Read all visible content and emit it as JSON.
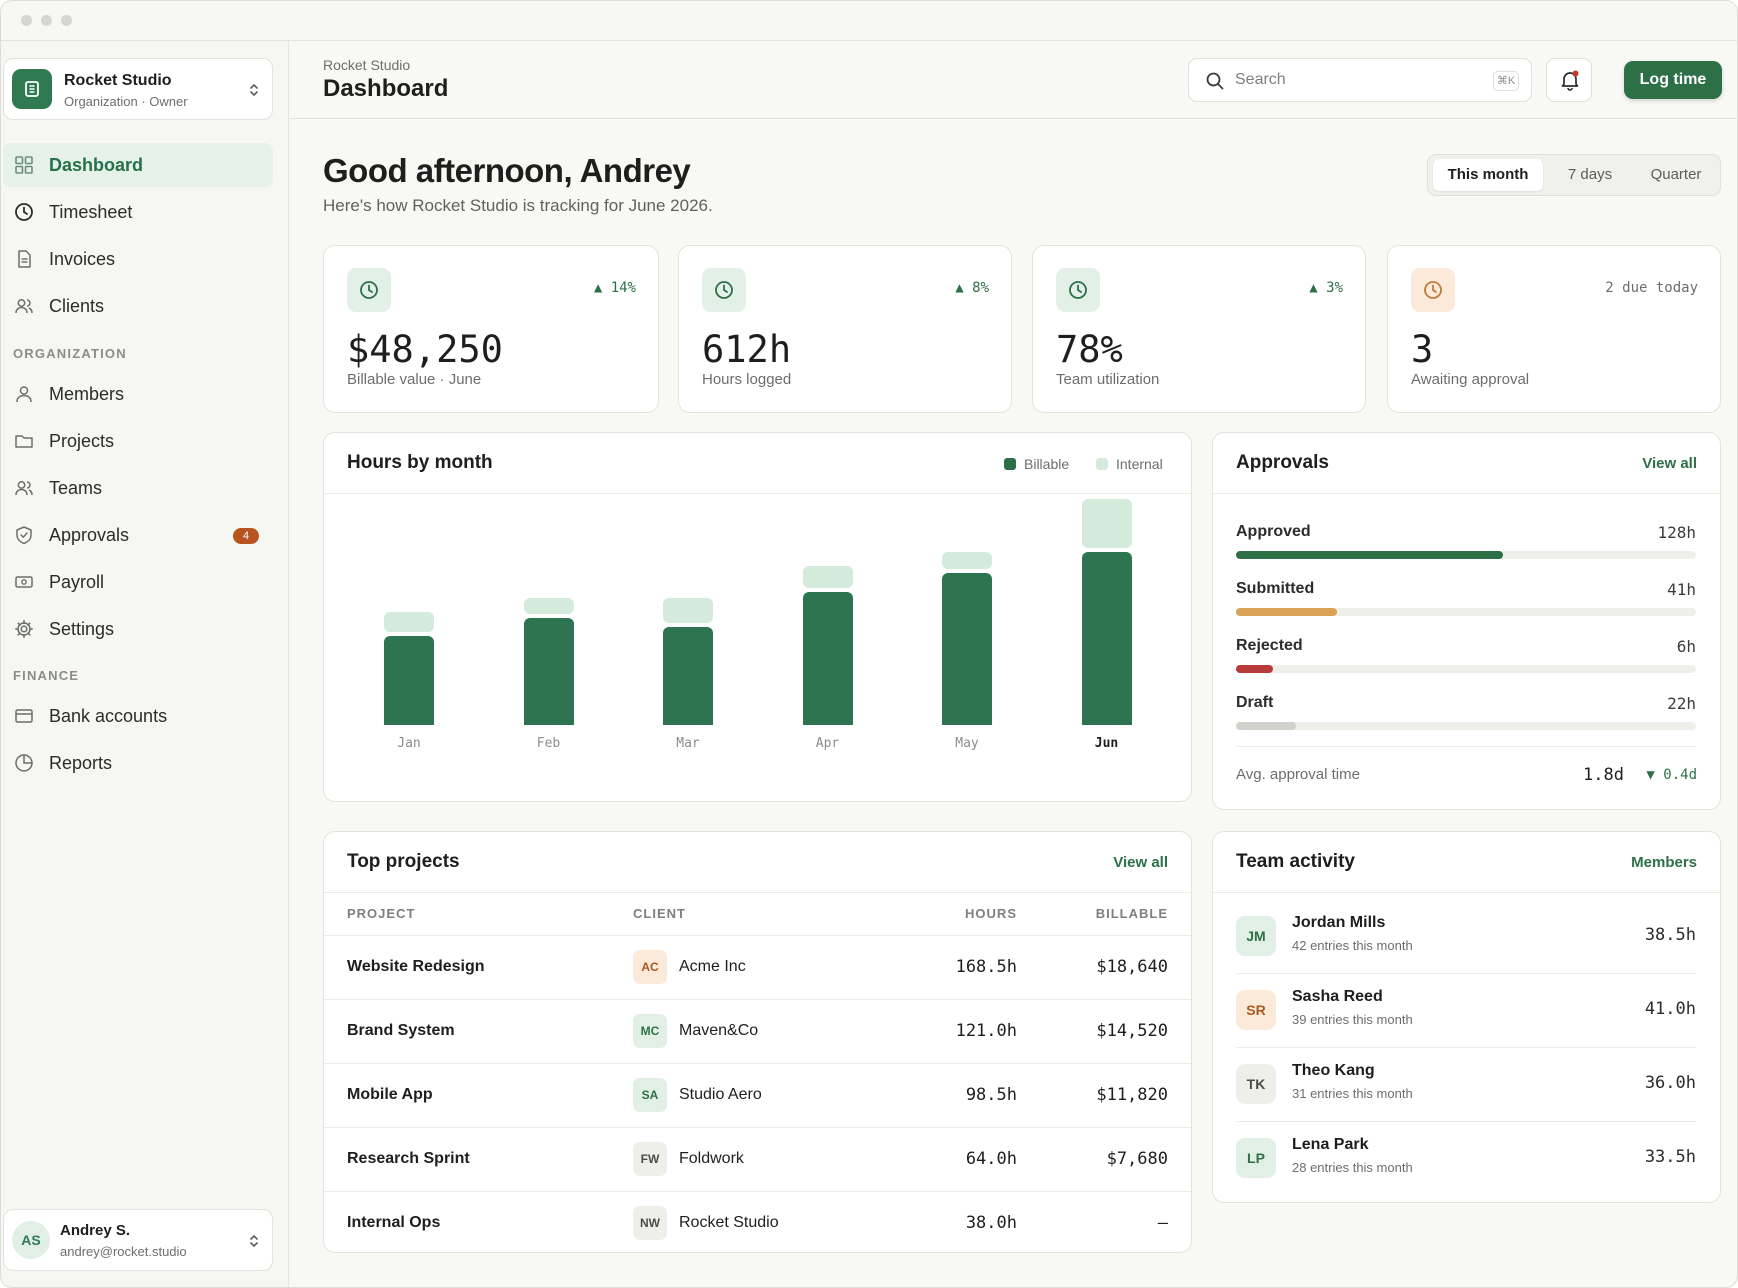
{
  "colors": {
    "accent": "#2d7048",
    "accent_light": "#d4ebdb",
    "warning": "#d9a256",
    "danger": "#b83a3a",
    "muted": "#d2d2cc",
    "badge": "#b8541f"
  },
  "org": {
    "name": "Rocket Studio",
    "subtitle": "Organization · Owner",
    "icon": "building-icon"
  },
  "nav": {
    "main": [
      {
        "label": "Dashboard",
        "icon": "grid-icon",
        "active": true
      },
      {
        "label": "Timesheet",
        "icon": "clock-icon"
      },
      {
        "label": "Invoices",
        "icon": "document-icon"
      },
      {
        "label": "Clients",
        "icon": "users-icon"
      }
    ],
    "organization_heading": "ORGANIZATION",
    "organization": [
      {
        "label": "Members",
        "icon": "user-icon"
      },
      {
        "label": "Projects",
        "icon": "folder-icon"
      },
      {
        "label": "Teams",
        "icon": "users-icon"
      },
      {
        "label": "Approvals",
        "icon": "shield-check-icon",
        "badge": "4"
      },
      {
        "label": "Payroll",
        "icon": "banknote-icon"
      },
      {
        "label": "Settings",
        "icon": "gear-icon"
      }
    ],
    "finance_heading": "FINANCE",
    "finance": [
      {
        "label": "Bank accounts",
        "icon": "credit-card-icon"
      },
      {
        "label": "Reports",
        "icon": "pie-chart-icon"
      }
    ]
  },
  "user": {
    "initials": "AS",
    "name": "Andrey S.",
    "email": "andrey@rocket.studio"
  },
  "header": {
    "breadcrumb": "Rocket Studio",
    "title": "Dashboard",
    "search_placeholder": "Search",
    "search_shortcut": "⌘K",
    "log_time_label": "Log time"
  },
  "greeting": {
    "title": "Good afternoon, Andrey",
    "subtitle": "Here's how Rocket Studio is tracking for June 2026."
  },
  "range": {
    "options": [
      "This month",
      "7 days",
      "Quarter"
    ],
    "selected": "This month"
  },
  "kpis": [
    {
      "value": "$48,250",
      "label": "Billable value · June",
      "delta": "▲ 14%",
      "icon": "clock-icon"
    },
    {
      "value": "612h",
      "label": "Hours logged",
      "delta": "▲ 8%",
      "icon": "clock-icon"
    },
    {
      "value": "78%",
      "label": "Team utilization",
      "delta": "▲ 3%",
      "icon": "clock-icon"
    },
    {
      "value": "3",
      "label": "Awaiting approval",
      "delta": "2 due today",
      "icon": "clock-icon"
    }
  ],
  "hours_chart": {
    "title": "Hours by month",
    "legend": [
      "Billable",
      "Internal"
    ]
  },
  "chart_data": {
    "type": "bar",
    "stacked": true,
    "categories": [
      "Jan",
      "Feb",
      "Mar",
      "Apr",
      "May",
      "Jun"
    ],
    "series": [
      {
        "name": "Billable",
        "values": [
          58,
          70,
          64,
          87,
          99,
          113
        ]
      },
      {
        "name": "Internal",
        "values": [
          13,
          10,
          16,
          14,
          11,
          32
        ]
      }
    ],
    "highlight": "Jun",
    "ylim": [
      0,
      150
    ],
    "grid": false,
    "legend_position": "top-right"
  },
  "approvals": {
    "title": "Approvals",
    "link": "View all",
    "rows": [
      {
        "label": "Approved",
        "value": "128h",
        "fraction": 0.58,
        "color": "#2d7048"
      },
      {
        "label": "Submitted",
        "value": "41h",
        "fraction": 0.22,
        "color": "#d9a256"
      },
      {
        "label": "Rejected",
        "value": "6h",
        "fraction": 0.08,
        "color": "#b83a3a"
      },
      {
        "label": "Draft",
        "value": "22h",
        "fraction": 0.13,
        "color": "#d2d2cc"
      }
    ],
    "avg_label": "Avg. approval time",
    "avg_value": "1.8d",
    "avg_delta": "▼ 0.4d"
  },
  "top_projects": {
    "title": "Top projects",
    "link": "View all",
    "columns": [
      "PROJECT",
      "CLIENT",
      "HOURS",
      "BILLABLE"
    ],
    "rows": [
      {
        "project": "Website Redesign",
        "client_initials": "AC",
        "client": "Acme Inc",
        "hours": "168.5h",
        "billable": "$18,640",
        "badge_bg": "#fbe9da",
        "badge_fg": "#a85a1f"
      },
      {
        "project": "Brand System",
        "client_initials": "MC",
        "client": "Maven&Co",
        "hours": "121.0h",
        "billable": "$14,520",
        "badge_bg": "#e1efe5",
        "badge_fg": "#2d7048"
      },
      {
        "project": "Mobile App",
        "client_initials": "SA",
        "client": "Studio Aero",
        "hours": "98.5h",
        "billable": "$11,820",
        "badge_bg": "#e1efe5",
        "badge_fg": "#2d7048"
      },
      {
        "project": "Research Sprint",
        "client_initials": "FW",
        "client": "Foldwork",
        "hours": "64.0h",
        "billable": "$7,680",
        "badge_bg": "#efefea",
        "badge_fg": "#4a4d4a"
      },
      {
        "project": "Internal Ops",
        "client_initials": "NW",
        "client": "Rocket Studio",
        "hours": "38.0h",
        "billable": "–",
        "badge_bg": "#efefea",
        "badge_fg": "#4a4d4a"
      }
    ]
  },
  "team_activity": {
    "title": "Team activity",
    "link": "Members",
    "members": [
      {
        "initials": "JM",
        "name": "Jordan Mills",
        "entries": "42 entries this month",
        "hours": "38.5h",
        "bg": "#e1efe5",
        "fg": "#2d7048"
      },
      {
        "initials": "SR",
        "name": "Sasha Reed",
        "entries": "39 entries this month",
        "hours": "41.0h",
        "bg": "#fbe9da",
        "fg": "#a85a1f"
      },
      {
        "initials": "TK",
        "name": "Theo Kang",
        "entries": "31 entries this month",
        "hours": "36.0h",
        "bg": "#efefea",
        "fg": "#4a4d4a"
      },
      {
        "initials": "LP",
        "name": "Lena Park",
        "entries": "28 entries this month",
        "hours": "33.5h",
        "bg": "#e1efe5",
        "fg": "#2d7048"
      }
    ]
  }
}
